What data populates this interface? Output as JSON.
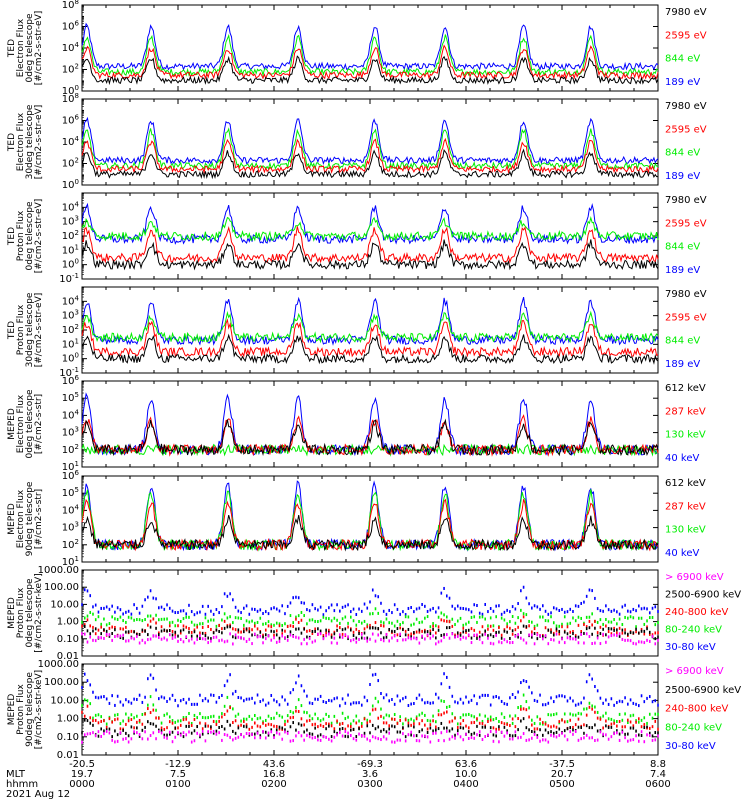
{
  "page": {
    "date_label": "2021 Aug 12"
  },
  "colors": {
    "blue": "#0000ff",
    "red": "#ff0000",
    "green": "#00ee00",
    "black": "#000000",
    "magenta": "#ff00ff"
  },
  "x_axis": {
    "row_labels": [
      "MLT",
      "hhmm"
    ],
    "ticks": [
      {
        "lat": "-20.5",
        "mlt": "19.7",
        "time": "0000"
      },
      {
        "lat": "-12.9",
        "mlt": "7.5",
        "time": "0100"
      },
      {
        "lat": "43.6",
        "mlt": "16.8",
        "time": "0200"
      },
      {
        "lat": "-69.3",
        "mlt": "3.6",
        "time": "0300"
      },
      {
        "lat": "63.6",
        "mlt": "10.0",
        "time": "0400"
      },
      {
        "lat": "-37.5",
        "mlt": "20.7",
        "time": "0500"
      },
      {
        "lat": "8.8",
        "mlt": "7.4",
        "time": "0600"
      }
    ],
    "range_hours": [
      0,
      6
    ]
  },
  "chart_data": [
    {
      "type": "line",
      "ylabel": [
        "TED",
        "Electron Flux",
        "0deg telescope",
        "[#/cm2-s-str-eV]"
      ],
      "yscale": "log",
      "ylim": [
        1,
        100000000
      ],
      "ytick_labels": [
        "10^0",
        "10^2",
        "10^4",
        "10^6",
        "10^8"
      ],
      "series": [
        {
          "name": "7980 eV",
          "color": "black",
          "baseline": 10,
          "peak": 1000
        },
        {
          "name": "2595 eV",
          "color": "red",
          "baseline": 30,
          "peak": 10000
        },
        {
          "name": "844 eV",
          "color": "green",
          "baseline": 60,
          "peak": 100000
        },
        {
          "name": "189 eV",
          "color": "blue",
          "baseline": 200,
          "peak": 1000000
        }
      ]
    },
    {
      "type": "line",
      "ylabel": [
        "TED",
        "Electron Flux",
        "30deg telescope",
        "[#/cm2-s-str-eV]"
      ],
      "yscale": "log",
      "ylim": [
        1,
        100000000
      ],
      "ytick_labels": [
        "10^0",
        "10^2",
        "10^4",
        "10^6",
        "10^8"
      ],
      "series": [
        {
          "name": "7980 eV",
          "color": "black",
          "baseline": 10,
          "peak": 1000
        },
        {
          "name": "2595 eV",
          "color": "red",
          "baseline": 30,
          "peak": 10000
        },
        {
          "name": "844 eV",
          "color": "green",
          "baseline": 60,
          "peak": 100000
        },
        {
          "name": "189 eV",
          "color": "blue",
          "baseline": 200,
          "peak": 1000000
        }
      ]
    },
    {
      "type": "line",
      "ylabel": [
        "TED",
        "Proton Flux",
        "0deg telescope",
        "[#/cm2-s-str-eV]"
      ],
      "yscale": "log",
      "ylim": [
        0.1,
        100000
      ],
      "ytick_labels": [
        "10^-1",
        "10^0",
        "10^1",
        "10^2",
        "10^3",
        "10^4"
      ],
      "series": [
        {
          "name": "7980 eV",
          "color": "black",
          "baseline": 1,
          "peak": 30
        },
        {
          "name": "2595 eV",
          "color": "red",
          "baseline": 3,
          "peak": 300
        },
        {
          "name": "844 eV",
          "color": "green",
          "baseline": 100,
          "peak": 1000
        },
        {
          "name": "189 eV",
          "color": "blue",
          "baseline": 60,
          "peak": 10000
        }
      ]
    },
    {
      "type": "line",
      "ylabel": [
        "TED",
        "Proton Flux",
        "30deg telescope",
        "[#/cm2-s-str-eV]"
      ],
      "yscale": "log",
      "ylim": [
        0.1,
        100000
      ],
      "ytick_labels": [
        "10^-1",
        "10^0",
        "10^1",
        "10^2",
        "10^3",
        "10^4"
      ],
      "series": [
        {
          "name": "7980 eV",
          "color": "black",
          "baseline": 1,
          "peak": 30
        },
        {
          "name": "2595 eV",
          "color": "red",
          "baseline": 3,
          "peak": 300
        },
        {
          "name": "844 eV",
          "color": "green",
          "baseline": 30,
          "peak": 1000
        },
        {
          "name": "189 eV",
          "color": "blue",
          "baseline": 20,
          "peak": 10000
        }
      ]
    },
    {
      "type": "line",
      "ylabel": [
        "MEPED",
        "Electron Flux",
        "0deg telescope",
        "[#/cm2-s-str]"
      ],
      "yscale": "log",
      "ylim": [
        10,
        1000000
      ],
      "ytick_labels": [
        "10^1",
        "10^2",
        "10^3",
        "10^4",
        "10^5",
        "10^6"
      ],
      "series": [
        {
          "name": "612 keV",
          "color": "black",
          "baseline": 100,
          "peak": 3000
        },
        {
          "name": "287 keV",
          "color": "red",
          "baseline": 100,
          "peak": 5000
        },
        {
          "name": "130 keV",
          "color": "green",
          "baseline": 100,
          "peak": 100
        },
        {
          "name": "40 keV",
          "color": "blue",
          "baseline": 100,
          "peak": 100000
        }
      ]
    },
    {
      "type": "line",
      "ylabel": [
        "MEPED",
        "Electron Flux",
        "90deg telescope",
        "[#/cm2-s-str]"
      ],
      "yscale": "log",
      "ylim": [
        10,
        1000000
      ],
      "ytick_labels": [
        "10^1",
        "10^2",
        "10^3",
        "10^4",
        "10^5",
        "10^6"
      ],
      "series": [
        {
          "name": "612 keV",
          "color": "black",
          "baseline": 100,
          "peak": 3000
        },
        {
          "name": "287 keV",
          "color": "red",
          "baseline": 100,
          "peak": 30000
        },
        {
          "name": "130 keV",
          "color": "green",
          "baseline": 100,
          "peak": 100000
        },
        {
          "name": "40 keV",
          "color": "blue",
          "baseline": 100,
          "peak": 300000
        }
      ]
    },
    {
      "type": "scatter",
      "ylabel": [
        "MEPED",
        "Proton Flux",
        "0deg telescope",
        "[#/cm2-s-str-keV]"
      ],
      "yscale": "log",
      "ylim": [
        0.01,
        1000
      ],
      "ytick_labels": [
        "0.01",
        "0.10",
        "1.00",
        "10.00",
        "100.00",
        "1000.00"
      ],
      "series": [
        {
          "name": "> 6900 keV",
          "color": "magenta",
          "baseline": 0.1,
          "peak": 0.1
        },
        {
          "name": "2500-6900 keV",
          "color": "black",
          "baseline": 0.2,
          "peak": 0.3
        },
        {
          "name": "240-800 keV",
          "color": "red",
          "baseline": 0.3,
          "peak": 1
        },
        {
          "name": "80-240 keV",
          "color": "green",
          "baseline": 1,
          "peak": 3
        },
        {
          "name": "30-80 keV",
          "color": "blue",
          "baseline": 5,
          "peak": 50
        }
      ]
    },
    {
      "type": "scatter",
      "ylabel": [
        "MEPED",
        "Proton Flux",
        "90deg telescope",
        "[#/cm2-s-str-keV]"
      ],
      "yscale": "log",
      "ylim": [
        0.01,
        1000
      ],
      "ytick_labels": [
        "0.01",
        "0.10",
        "1.00",
        "10.00",
        "100.00",
        "1000.00"
      ],
      "series": [
        {
          "name": "> 6900 keV",
          "color": "magenta",
          "baseline": 0.1,
          "peak": 0.1
        },
        {
          "name": "2500-6900 keV",
          "color": "black",
          "baseline": 0.2,
          "peak": 0.5
        },
        {
          "name": "240-800 keV",
          "color": "red",
          "baseline": 0.5,
          "peak": 3
        },
        {
          "name": "80-240 keV",
          "color": "green",
          "baseline": 1,
          "peak": 10
        },
        {
          "name": "30-80 keV",
          "color": "blue",
          "baseline": 10,
          "peak": 200
        }
      ]
    }
  ]
}
